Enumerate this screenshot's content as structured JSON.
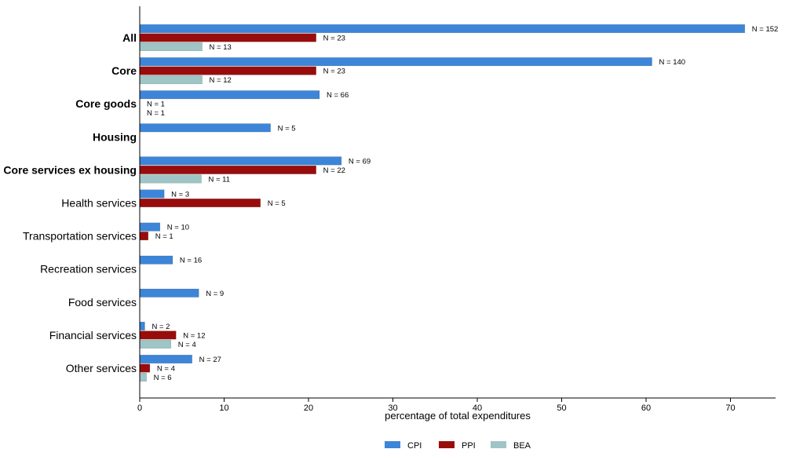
{
  "chart_data": {
    "type": "bar",
    "orientation": "horizontal",
    "xlabel": "percentage of total expenditures",
    "xlim": [
      0,
      75
    ],
    "xticks": [
      0,
      10,
      20,
      30,
      40,
      50,
      60,
      70
    ],
    "grid": false,
    "legend_position": "bottom-center",
    "categories": [
      {
        "label": "All",
        "bold": true
      },
      {
        "label": "Core",
        "bold": true
      },
      {
        "label": "Core goods",
        "bold": true
      },
      {
        "label": "Housing",
        "bold": true
      },
      {
        "label": "Core services ex housing",
        "bold": true
      },
      {
        "label": "Health services",
        "bold": false
      },
      {
        "label": "Transportation services",
        "bold": false
      },
      {
        "label": "Recreation services",
        "bold": false
      },
      {
        "label": "Food services",
        "bold": false
      },
      {
        "label": "Financial services",
        "bold": false
      },
      {
        "label": "Other services",
        "bold": false
      }
    ],
    "series": [
      {
        "name": "CPI",
        "color": "#3d85d8",
        "values": [
          71.7,
          60.7,
          21.3,
          15.5,
          23.9,
          2.9,
          2.4,
          3.9,
          7.0,
          0.6,
          6.2
        ],
        "labels": [
          "N = 152",
          "N = 140",
          "N = 66",
          "N = 5",
          "N = 69",
          "N = 3",
          "N = 10",
          "N = 16",
          "N = 9",
          "N = 2",
          "N = 27"
        ]
      },
      {
        "name": "PPI",
        "color": "#990c0c",
        "values": [
          20.9,
          20.9,
          0,
          null,
          20.9,
          14.3,
          1.0,
          null,
          null,
          4.3,
          1.2
        ],
        "labels": [
          "N = 23",
          "N = 23",
          "N = 1",
          null,
          "N = 22",
          "N = 5",
          "N = 1",
          null,
          null,
          "N = 12",
          "N = 4"
        ]
      },
      {
        "name": "BEA",
        "color": "#9fc5c6",
        "values": [
          7.4,
          7.4,
          0,
          null,
          7.3,
          null,
          null,
          null,
          null,
          3.7,
          0.8
        ],
        "labels": [
          "N = 13",
          "N = 12",
          "N = 1",
          null,
          "N = 11",
          null,
          null,
          null,
          null,
          "N = 4",
          "N = 6"
        ]
      }
    ]
  }
}
